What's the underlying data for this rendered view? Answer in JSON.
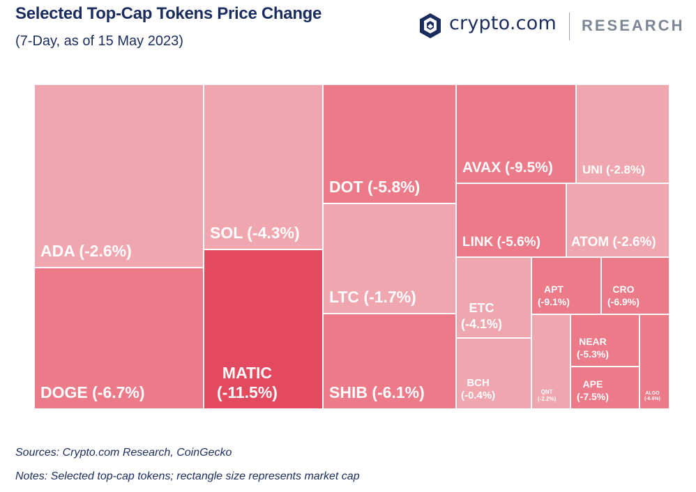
{
  "header": {
    "title": "Selected Top-Cap Tokens Price Change",
    "subtitle": "(7-Day, as of 15 May 2023)"
  },
  "logo": {
    "wordmark": "crypto.com",
    "division": "RESEARCH",
    "icon": "crypto-com-lion-shield-icon"
  },
  "colors": {
    "light": "#f0a6ae",
    "medium": "#ec7a88",
    "dark": "#e34a5f",
    "text": "#1a2b5e"
  },
  "chart_data": {
    "type": "treemap",
    "title": "Selected Top-Cap Tokens Price Change",
    "subtitle": "(7-Day, as of 15 May 2023)",
    "unit": "%",
    "items": [
      {
        "name": "ADA",
        "change": -2.6,
        "label": "ADA (-2.6%)"
      },
      {
        "name": "DOGE",
        "change": -6.7,
        "label": "DOGE (-6.7%)"
      },
      {
        "name": "SOL",
        "change": -4.3,
        "label": "SOL (-4.3%)"
      },
      {
        "name": "MATIC",
        "change": -11.5,
        "label": "MATIC\n(-11.5%)"
      },
      {
        "name": "DOT",
        "change": -5.8,
        "label": "DOT (-5.8%)"
      },
      {
        "name": "LTC",
        "change": -1.7,
        "label": "LTC (-1.7%)"
      },
      {
        "name": "SHIB",
        "change": -6.1,
        "label": "SHIB (-6.1%)"
      },
      {
        "name": "AVAX",
        "change": -9.5,
        "label": "AVAX (-9.5%)"
      },
      {
        "name": "UNI",
        "change": -2.8,
        "label": "UNI (-2.8%)"
      },
      {
        "name": "LINK",
        "change": -5.6,
        "label": "LINK (-5.6%)"
      },
      {
        "name": "ATOM",
        "change": -2.6,
        "label": "ATOM (-2.6%)"
      },
      {
        "name": "ETC",
        "change": -4.1,
        "label": "ETC\n(-4.1%)"
      },
      {
        "name": "APT",
        "change": -9.1,
        "label": "APT\n(-9.1%)"
      },
      {
        "name": "CRO",
        "change": -6.9,
        "label": "CRO\n(-6.9%)"
      },
      {
        "name": "BCH",
        "change": -0.4,
        "label": "BCH\n(-0.4%)"
      },
      {
        "name": "QNT",
        "change": -2.2,
        "label": "QNT\n(-2.2%)"
      },
      {
        "name": "NEAR",
        "change": -5.3,
        "label": "NEAR\n(-5.3%)"
      },
      {
        "name": "APE",
        "change": -7.5,
        "label": "APE\n(-7.5%)"
      },
      {
        "name": "ALGO",
        "change": -6.6,
        "label": "ALGO\n(-6.6%)"
      }
    ]
  },
  "footer": {
    "sources": "Sources: Crypto.com Research, CoinGecko",
    "notes": "Notes: Selected top-cap tokens; rectangle size represents market cap"
  }
}
